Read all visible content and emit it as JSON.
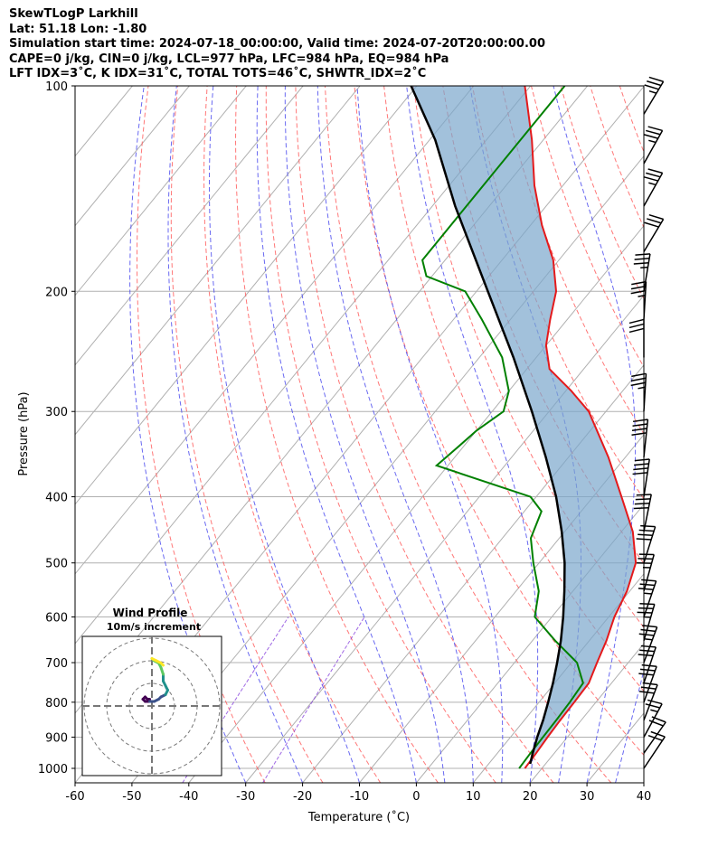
{
  "title_lines": [
    "SkewTLogP Larkhill",
    "Lat: 51.18   Lon: -1.80",
    "Simulation start time: 2024-07-18_00:00:00, Valid time: 2024-07-20T20:00:00.00",
    "CAPE=0 j/kg, CIN=0 j/kg, LCL=977 hPa, LFC=984 hPa, EQ=984 hPa",
    "LFT IDX=3˚C, K IDX=31˚C, TOTAL TOTS=46˚C, SHWTR_IDX=2˚C"
  ],
  "chart_data": {
    "type": "skewt-logp",
    "title": "SkewTLogP Larkhill",
    "xlabel": "Temperature (˚C)",
    "ylabel": "Pressure (hPa)",
    "xlim": [
      -60,
      40
    ],
    "ylim_hpa": [
      1050,
      100
    ],
    "x_ticks": [
      -60,
      -50,
      -40,
      -30,
      -20,
      -10,
      0,
      10,
      20,
      30,
      40
    ],
    "y_ticks": [
      1000,
      900,
      800,
      700,
      600,
      500,
      400,
      300,
      200,
      100
    ],
    "colors": {
      "temperature": "#e41a1c",
      "dewpoint": "#008000",
      "parcel": "#000000",
      "cape_fill": "#7ba7cc",
      "dry_adiabat": "#ff5555",
      "moist_adiabat": "#4444ee",
      "mixing_ratio": "#8844dd",
      "isotherm": "#999999",
      "grid": "#b0b0b0",
      "barb": "#000000"
    },
    "temperature_profile": [
      {
        "p": 1000,
        "t": 17
      },
      {
        "p": 950,
        "t": 16.8
      },
      {
        "p": 900,
        "t": 16.5
      },
      {
        "p": 850,
        "t": 16.3
      },
      {
        "p": 800,
        "t": 16.2
      },
      {
        "p": 750,
        "t": 16
      },
      {
        "p": 700,
        "t": 14.5
      },
      {
        "p": 650,
        "t": 13
      },
      {
        "p": 600,
        "t": 11
      },
      {
        "p": 550,
        "t": 9.5
      },
      {
        "p": 500,
        "t": 7
      },
      {
        "p": 450,
        "t": 2
      },
      {
        "p": 400,
        "t": -5
      },
      {
        "p": 350,
        "t": -13
      },
      {
        "p": 300,
        "t": -23
      },
      {
        "p": 280,
        "t": -29
      },
      {
        "p": 260,
        "t": -36
      },
      {
        "p": 240,
        "t": -40
      },
      {
        "p": 220,
        "t": -43
      },
      {
        "p": 200,
        "t": -46
      },
      {
        "p": 180,
        "t": -51
      },
      {
        "p": 160,
        "t": -58
      },
      {
        "p": 140,
        "t": -65
      },
      {
        "p": 120,
        "t": -72
      },
      {
        "p": 100,
        "t": -81
      }
    ],
    "dewpoint_profile": [
      {
        "p": 1000,
        "t": 16
      },
      {
        "p": 950,
        "t": 15.8
      },
      {
        "p": 900,
        "t": 15.7
      },
      {
        "p": 850,
        "t": 15.6
      },
      {
        "p": 800,
        "t": 15.4
      },
      {
        "p": 750,
        "t": 15
      },
      {
        "p": 700,
        "t": 11
      },
      {
        "p": 650,
        "t": 4
      },
      {
        "p": 600,
        "t": -3
      },
      {
        "p": 550,
        "t": -6
      },
      {
        "p": 500,
        "t": -11
      },
      {
        "p": 460,
        "t": -15
      },
      {
        "p": 420,
        "t": -17
      },
      {
        "p": 400,
        "t": -21
      },
      {
        "p": 360,
        "t": -42
      },
      {
        "p": 340,
        "t": -41
      },
      {
        "p": 320,
        "t": -40
      },
      {
        "p": 300,
        "t": -38
      },
      {
        "p": 280,
        "t": -40
      },
      {
        "p": 250,
        "t": -46
      },
      {
        "p": 220,
        "t": -55
      },
      {
        "p": 200,
        "t": -62
      },
      {
        "p": 190,
        "t": -71
      },
      {
        "p": 180,
        "t": -74
      },
      {
        "p": 170,
        "t": -74
      },
      {
        "p": 150,
        "t": -74
      },
      {
        "p": 120,
        "t": -74
      },
      {
        "p": 100,
        "t": -74
      }
    ],
    "parcel_profile": [
      {
        "p": 985,
        "t": 17.3
      },
      {
        "p": 950,
        "t": 16.2
      },
      {
        "p": 900,
        "t": 14.7
      },
      {
        "p": 850,
        "t": 13.3
      },
      {
        "p": 800,
        "t": 11.6
      },
      {
        "p": 750,
        "t": 9.7
      },
      {
        "p": 700,
        "t": 7.5
      },
      {
        "p": 650,
        "t": 5
      },
      {
        "p": 600,
        "t": 2
      },
      {
        "p": 550,
        "t": -1.5
      },
      {
        "p": 500,
        "t": -5.5
      },
      {
        "p": 450,
        "t": -10.5
      },
      {
        "p": 400,
        "t": -16.5
      },
      {
        "p": 350,
        "t": -24
      },
      {
        "p": 300,
        "t": -33
      },
      {
        "p": 250,
        "t": -44
      },
      {
        "p": 200,
        "t": -58
      },
      {
        "p": 150,
        "t": -76
      },
      {
        "p": 120,
        "t": -89
      },
      {
        "p": 100,
        "t": -101
      }
    ],
    "wind_barbs_kt": [
      {
        "p": 1000,
        "u": -10,
        "v": 15
      },
      {
        "p": 950,
        "u": -12,
        "v": 17
      },
      {
        "p": 900,
        "u": -12,
        "v": 22
      },
      {
        "p": 850,
        "u": -10,
        "v": 26
      },
      {
        "p": 800,
        "u": -10,
        "v": 28
      },
      {
        "p": 750,
        "u": -10,
        "v": 30
      },
      {
        "p": 700,
        "u": -13,
        "v": 35
      },
      {
        "p": 650,
        "u": -10,
        "v": 34
      },
      {
        "p": 600,
        "u": -12,
        "v": 35
      },
      {
        "p": 550,
        "u": -10,
        "v": 36
      },
      {
        "p": 500,
        "u": -12,
        "v": 38
      },
      {
        "p": 450,
        "u": -8,
        "v": 40
      },
      {
        "p": 400,
        "u": -6,
        "v": 40
      },
      {
        "p": 350,
        "u": -4,
        "v": 38
      },
      {
        "p": 300,
        "u": -2,
        "v": 34
      },
      {
        "p": 250,
        "u": 0,
        "v": 30
      },
      {
        "p": 220,
        "u": -2,
        "v": 34
      },
      {
        "p": 200,
        "u": -6,
        "v": 36
      },
      {
        "p": 175,
        "u": -15,
        "v": 25
      },
      {
        "p": 150,
        "u": -18,
        "v": 32
      },
      {
        "p": 130,
        "u": -18,
        "v": 32
      },
      {
        "p": 110,
        "u": -18,
        "v": 30
      }
    ],
    "hodograph": {
      "title": "Wind Profile",
      "subtitle": "10m/s increment",
      "rings_ms": [
        10,
        20,
        30
      ],
      "points_ms": [
        [
          -1,
          3
        ],
        [
          -2,
          3
        ],
        [
          -3,
          4
        ],
        [
          -4,
          3
        ],
        [
          -3,
          2
        ],
        [
          -1,
          2
        ],
        [
          1,
          2
        ],
        [
          3,
          3
        ],
        [
          4,
          4
        ],
        [
          6,
          5
        ],
        [
          7,
          7
        ],
        [
          6,
          9
        ],
        [
          5,
          11
        ],
        [
          5,
          14
        ],
        [
          4,
          17
        ],
        [
          3,
          19
        ],
        [
          1,
          20
        ],
        [
          0,
          21
        ],
        [
          2,
          20
        ],
        [
          4,
          19
        ],
        [
          5,
          18
        ]
      ]
    }
  }
}
